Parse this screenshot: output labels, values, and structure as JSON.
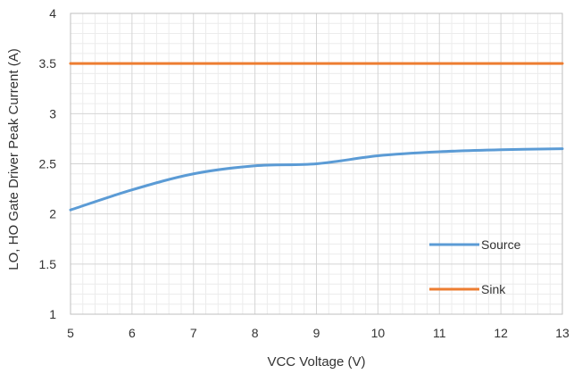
{
  "chart_data": {
    "type": "line",
    "title": "",
    "xlabel": "VCC Voltage (V)",
    "ylabel": "LO, HO Gate Driver Peak Current (A)",
    "xlim": [
      5,
      13
    ],
    "ylim": [
      1,
      4
    ],
    "x_ticks": [
      "5",
      "6",
      "7",
      "8",
      "9",
      "10",
      "11",
      "12",
      "13"
    ],
    "y_ticks": [
      "1",
      "1.5",
      "2",
      "2.5",
      "3",
      "3.5",
      "4"
    ],
    "grid": true,
    "legend_position": "bottom-right inside plot",
    "series": [
      {
        "name": "Source",
        "color": "#5B9BD5",
        "x": [
          5,
          6,
          7,
          8,
          9,
          10,
          11,
          12,
          13
        ],
        "y": [
          2.04,
          2.24,
          2.4,
          2.48,
          2.5,
          2.58,
          2.62,
          2.64,
          2.65
        ]
      },
      {
        "name": "Sink",
        "color": "#ED7D31",
        "x": [
          5,
          13
        ],
        "y": [
          3.5,
          3.5
        ]
      }
    ]
  }
}
